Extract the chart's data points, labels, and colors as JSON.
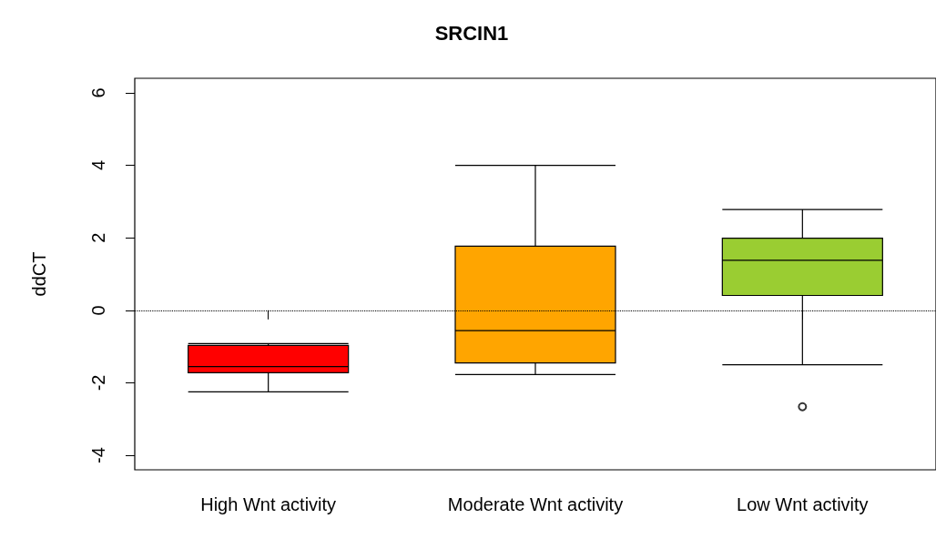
{
  "chart_data": {
    "type": "box",
    "title": "SRCIN1",
    "ylabel": "ddCT",
    "categories": [
      "High Wnt activity",
      "Moderate Wnt activity",
      "Low Wnt activity"
    ],
    "colors": [
      "#ff0000",
      "#ffa500",
      "#9acd32"
    ],
    "boxes": [
      {
        "low": -2.25,
        "q1": -1.72,
        "median": -1.55,
        "q3": -0.97,
        "high": -0.92
      },
      {
        "low": -1.77,
        "q1": -1.45,
        "median": -0.56,
        "q3": 1.77,
        "high": 4.0
      },
      {
        "low": -1.5,
        "q1": 0.41,
        "median": 1.38,
        "q3": 1.99,
        "high": 2.78,
        "outliers": [
          -2.66
        ]
      }
    ],
    "ylim": [
      -4.4,
      6.4
    ],
    "yticks": [
      -4,
      -2,
      0,
      2,
      4,
      6
    ],
    "grid": false,
    "ref_lines": [
      {
        "axis": "y",
        "value": 0,
        "line_style": "dotted",
        "color": "#000000"
      }
    ]
  }
}
